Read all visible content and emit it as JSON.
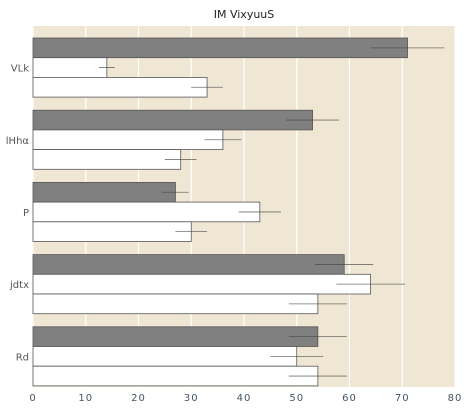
{
  "chart_data": {
    "type": "bar",
    "orientation": "horizontal",
    "title": "IM VixyuuS",
    "xlabel": "",
    "ylabel": "",
    "categories": [
      "VLk",
      "lHhα",
      "P",
      "jdtx",
      "Rd"
    ],
    "xlim": [
      0,
      80
    ],
    "xticks": [
      0,
      10,
      20,
      30,
      40,
      50,
      60,
      70,
      80
    ],
    "grid": true,
    "background": "#efe7d3",
    "gridline_color": "#ffffff",
    "series": [
      {
        "color": "#808080",
        "values": [
          71,
          53,
          27,
          59,
          54
        ],
        "errors": [
          7,
          5,
          2.5,
          5.5,
          5.5
        ]
      },
      {
        "color": "#ffffff",
        "values": [
          14,
          36,
          43,
          64,
          50
        ],
        "errors": [
          1.5,
          3.5,
          4,
          6.5,
          5
        ]
      },
      {
        "color": "#ffffff",
        "values": [
          33,
          28,
          30,
          54,
          54
        ],
        "errors": [
          3,
          3,
          3,
          5.5,
          5.5
        ]
      }
    ]
  }
}
